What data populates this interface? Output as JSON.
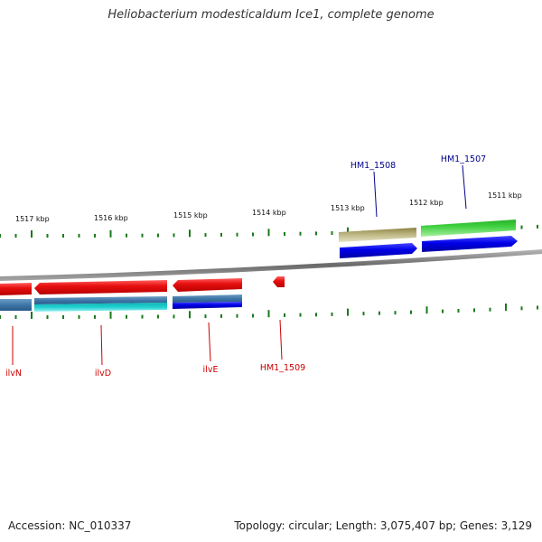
{
  "title": "Heliobacterium modesticaldum Ice1, complete genome",
  "footer": {
    "accession": "Accession: NC_010337",
    "stats": "Topology: circular; Length: 3,075,407 bp; Genes: 3,129"
  },
  "scale": {
    "unit": "kbp",
    "ticks": [
      "1517 kbp",
      "1516 kbp",
      "1515 kbp",
      "1514 kbp",
      "1513 kbp",
      "1512 kbp",
      "1511 kbp"
    ]
  },
  "genes": {
    "top": [
      {
        "name": "HM1_1508",
        "color": "#00008b"
      },
      {
        "name": "HM1_1507",
        "color": "#00008b"
      }
    ],
    "bottom": [
      {
        "name": "ilvN",
        "color": "#cc0000"
      },
      {
        "name": "ilvD",
        "color": "#cc0000"
      },
      {
        "name": "ilvE",
        "color": "#cc0000"
      },
      {
        "name": "HM1_1509",
        "color": "#cc0000"
      }
    ]
  },
  "colors": {
    "backbone": "#777777",
    "ticks": "#1a7a1a",
    "cds_reverse": "#e01010",
    "cds_forward": "#0000e0",
    "gene_plus": "#3ccc3c",
    "gene_olive": "#b8b07a",
    "gene_steel": "#3e77a8",
    "gene_cyan": "#18c8c8"
  }
}
